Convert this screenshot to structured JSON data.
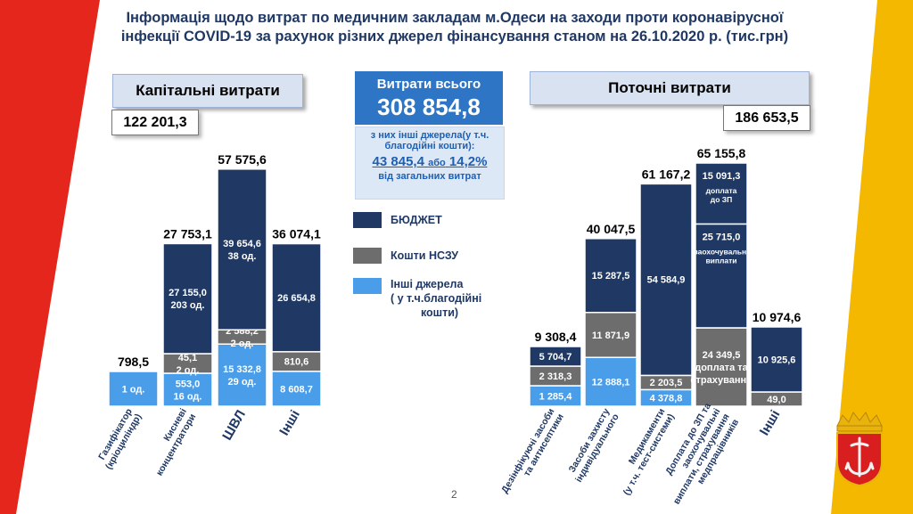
{
  "title_line1": "Інформація щодо витрат по медичним закладам м.Одеси на заходи проти коронавірусної",
  "title_line2": "інфекції COVID-19 за рахунок різних джерел фінансування станом на 26.10.2020 р. (тис.грн)",
  "capital": {
    "label": "Капітальні витрати",
    "total": "122 201,3"
  },
  "current": {
    "label": "Поточні витрати",
    "total": "186 653,5"
  },
  "center": {
    "label": "Витрати всього",
    "total": "308 854,8",
    "line1": "з них інші джерела(у т.ч.",
    "line2": "благодійні кошти):",
    "other_amount": "43 845,4",
    "other_conj": "або",
    "other_pct": "14,2%",
    "line3": "від загальних витрат"
  },
  "legend": [
    {
      "label": "БЮДЖЕТ",
      "color": "#1f3864"
    },
    {
      "label": "Кошти НСЗУ",
      "color": "#6d6d6d"
    },
    {
      "label_lines": [
        "Інші джерела",
        "( у т.ч.благодійні",
        "кошти)"
      ],
      "color": "#4a9de8"
    }
  ],
  "page_number": "2",
  "colors": {
    "budget": "#1f3864",
    "nszu": "#6d6d6d",
    "other": "#4a9de8",
    "stripe_red": "#e4261c",
    "stripe_yellow": "#f5b800",
    "title": "#1f3864"
  },
  "chart_data": [
    {
      "type": "bar",
      "stacked": true,
      "group": "Капітальні витрати",
      "categories": [
        "Газифікатор (кріоциліндр)",
        "Кисневі концентратори",
        "ШВЛ",
        "Інші"
      ],
      "category_lines": [
        [
          "Газифікатор",
          "(кріоциліндр)"
        ],
        [
          "Кисневі",
          "концентратори"
        ],
        [
          "ШВЛ"
        ],
        [
          "Інші"
        ]
      ],
      "totals": [
        "798,5",
        "27 753,1",
        "57 575,6",
        "36 074,1"
      ],
      "total_values": [
        798.5,
        27753.1,
        57575.6,
        36074.1
      ],
      "series": [
        {
          "name": "Інші джерела",
          "color": "#4a9de8",
          "values": [
            798.5,
            553.0,
            15332.8,
            8608.7
          ],
          "labels": [
            [
              "1 од."
            ],
            [
              "553,0",
              "16 од."
            ],
            [
              "15 332,8",
              "29 од."
            ],
            [
              "8 608,7"
            ]
          ]
        },
        {
          "name": "Кошти НСЗУ",
          "color": "#6d6d6d",
          "values": [
            0,
            45.1,
            2588.2,
            810.6
          ],
          "labels": [
            [],
            [
              "45,1",
              "2 од."
            ],
            [
              "2 588,2",
              "2 од."
            ],
            [
              "810,6"
            ]
          ]
        },
        {
          "name": "БЮДЖЕТ",
          "color": "#1f3864",
          "values": [
            0,
            27155.0,
            39654.6,
            26654.8
          ],
          "labels": [
            [],
            [
              "27 155,0",
              "203 од."
            ],
            [
              "39 654,6",
              "38 од."
            ],
            [
              "26 654,8"
            ]
          ]
        }
      ]
    },
    {
      "type": "bar",
      "stacked": true,
      "group": "Поточні витрати",
      "categories": [
        "Дезінфікуючі засоби та антисептики",
        "Засоби захисту індивідуального",
        "Медикаменти (у т.ч. тест-системи)",
        "Доплата до ЗП та заохочувальні виплати, страхування медпрацівників",
        "Інші"
      ],
      "category_lines": [
        [
          "Дезінфікуючі засоби",
          "та антисептики"
        ],
        [
          "Засоби захисту",
          "індивідуального"
        ],
        [
          "Медикаменти",
          "(у т.ч. тест-системи)"
        ],
        [
          "Доплата до ЗП та",
          "заохочувальні",
          "виплати, страхування",
          "медпрацівників"
        ],
        [
          "Інші"
        ]
      ],
      "totals": [
        "9 308,4",
        "40 047,5",
        "61 167,2",
        "65 155,8",
        "10 974,6"
      ],
      "total_values": [
        9308.4,
        40047.5,
        61167.2,
        65155.8,
        10974.6
      ],
      "series": [
        {
          "name": "Інші джерела",
          "color": "#4a9de8",
          "values": [
            1285.4,
            12888.1,
            4378.8,
            0,
            0
          ],
          "labels": [
            [
              "1 285,4"
            ],
            [
              "12 888,1"
            ],
            [
              "4 378,8"
            ],
            [],
            []
          ]
        },
        {
          "name": "Кошти НСЗУ",
          "color": "#6d6d6d",
          "values": [
            2318.3,
            11871.9,
            2203.5,
            24349.5,
            49.0
          ],
          "labels": [
            [
              "2 318,3"
            ],
            [
              "11 871,9"
            ],
            [
              "2 203,5"
            ],
            [
              "24 349,5",
              "доплата та",
              "страхування"
            ],
            [
              "49,0"
            ]
          ]
        },
        {
          "name": "БЮДЖЕТ",
          "color": "#1f3864",
          "values": [
            5704.7,
            15287.5,
            54584.9,
            40806.3,
            10925.6
          ],
          "labels": [
            [
              "5 704,7"
            ],
            [
              "15 287,5"
            ],
            [
              "54 584,9"
            ],
            [],
            [
              "10 925,6"
            ]
          ]
        }
      ],
      "budget_breakdown_col4": [
        {
          "value": "25 715,0",
          "note_lines": [
            "заохочувальні",
            "виплати"
          ]
        },
        {
          "value": "15 091,3",
          "note_lines": [
            "доплата",
            "до ЗП"
          ]
        }
      ]
    }
  ]
}
